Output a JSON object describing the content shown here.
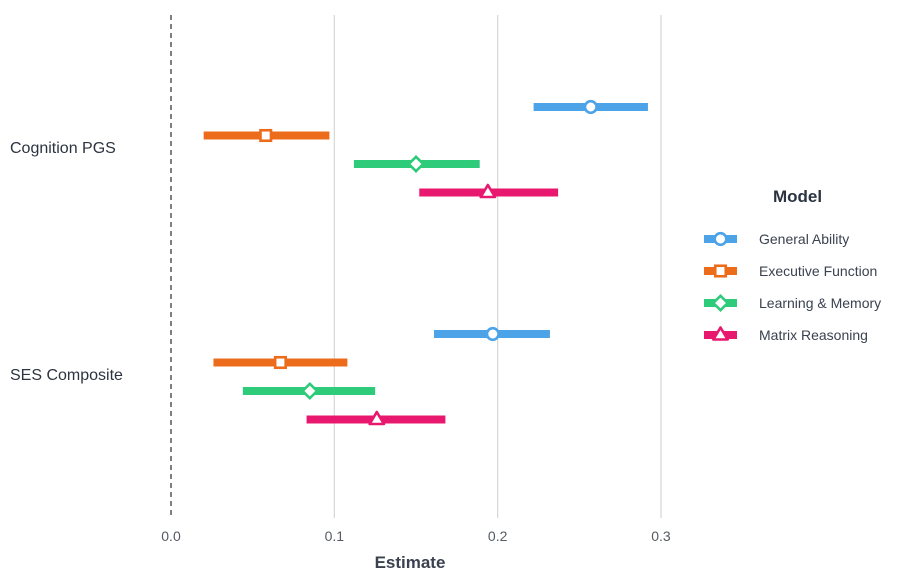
{
  "chart_data": {
    "type": "forest",
    "xlabel": "Estimate",
    "xlim": [
      0.0,
      0.3
    ],
    "x_ticks": [
      "0.0",
      "0.1",
      "0.2",
      "0.3"
    ],
    "reference_line": 0.0,
    "groups": [
      "Cognition PGS",
      "SES Composite"
    ],
    "legend_title": "Model",
    "legend_position": "right",
    "series": [
      {
        "name": "General Ability",
        "color": "#4da3e8",
        "marker": "circle",
        "estimates": [
          0.257,
          0.197
        ],
        "lower": [
          0.222,
          0.161
        ],
        "upper": [
          0.292,
          0.232
        ]
      },
      {
        "name": "Executive Function",
        "color": "#ec6c1c",
        "marker": "square",
        "estimates": [
          0.058,
          0.067
        ],
        "lower": [
          0.02,
          0.026
        ],
        "upper": [
          0.097,
          0.108
        ]
      },
      {
        "name": "Learning & Memory",
        "color": "#2ecb7a",
        "marker": "diamond",
        "estimates": [
          0.15,
          0.085
        ],
        "lower": [
          0.112,
          0.044
        ],
        "upper": [
          0.189,
          0.125
        ]
      },
      {
        "name": "Matrix Reasoning",
        "color": "#e8186e",
        "marker": "triangle",
        "estimates": [
          0.194,
          0.126
        ],
        "lower": [
          0.152,
          0.083
        ],
        "upper": [
          0.237,
          0.168
        ]
      }
    ]
  }
}
